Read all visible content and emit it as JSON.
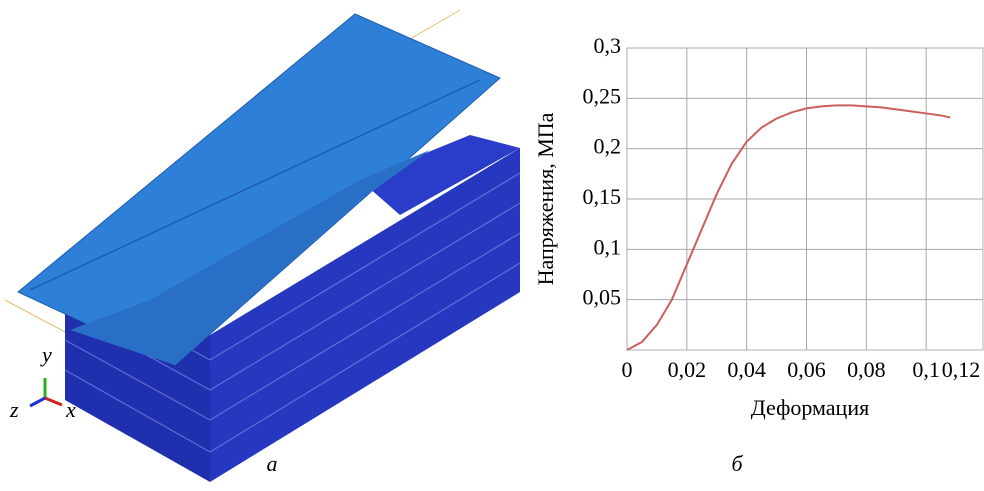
{
  "chart_data": {
    "type": "line",
    "x_label": "Деформация",
    "y_label": "Напряжения, МПа",
    "x": [
      0,
      0.005,
      0.01,
      0.015,
      0.02,
      0.025,
      0.03,
      0.035,
      0.04,
      0.045,
      0.05,
      0.055,
      0.06,
      0.065,
      0.07,
      0.075,
      0.08,
      0.085,
      0.09,
      0.095,
      0.1,
      0.105,
      0.108
    ],
    "values": [
      0,
      0.008,
      0.025,
      0.05,
      0.085,
      0.12,
      0.155,
      0.185,
      0.207,
      0.221,
      0.23,
      0.236,
      0.24,
      0.242,
      0.243,
      0.243,
      0.242,
      0.241,
      0.239,
      0.237,
      0.235,
      0.233,
      0.231
    ],
    "color": "#c9605e",
    "xlim": [
      0,
      0.119
    ],
    "ylim": [
      0,
      0.3
    ],
    "xticks": [
      0,
      {
        "value": 0.02,
        "label": "0,02"
      },
      {
        "value": 0.04,
        "label": "0,04"
      },
      {
        "value": 0.06,
        "label": "0,06"
      },
      {
        "value": 0.08,
        "label": "0,08"
      },
      {
        "value": 0.1,
        "label": "0,1"
      },
      {
        "value": 0.12,
        "label": "0,12"
      }
    ],
    "yticks": [
      {
        "value": 0.05,
        "label": "0,05"
      },
      {
        "value": 0.1,
        "label": "0,1"
      },
      {
        "value": 0.15,
        "label": "0,15"
      },
      {
        "value": 0.2,
        "label": "0,2"
      },
      {
        "value": 0.25,
        "label": "0,25"
      },
      {
        "value": 0.3,
        "label": "0,3"
      }
    ],
    "grid": true
  },
  "figure": {
    "left_caption": "а",
    "right_caption": "б",
    "triad_y": "y",
    "triad_z": "z",
    "triad_x": "x"
  }
}
